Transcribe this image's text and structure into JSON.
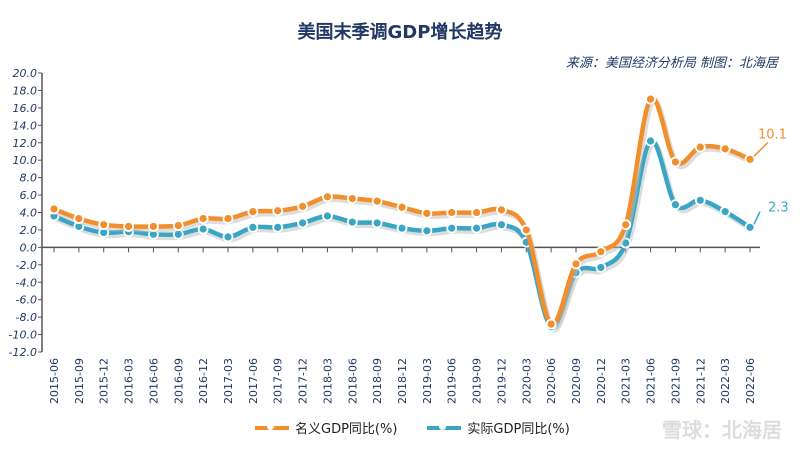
{
  "chart_data": {
    "type": "line",
    "title": "美国末季调GDP增长趋势",
    "source": "来源：美国经济分析局 制图：北海居",
    "ylim": [
      -12,
      20
    ],
    "yticks": [
      "20.0",
      "18.0",
      "16.0",
      "14.0",
      "12.0",
      "10.0",
      "8.0",
      "6.0",
      "4.0",
      "2.0",
      "0.0",
      "-2.0",
      "-4.0",
      "-6.0",
      "-8.0",
      "-10.0",
      "-12.0"
    ],
    "categories": [
      "2015-06",
      "2015-09",
      "2015-12",
      "2016-03",
      "2016-06",
      "2016-09",
      "2016-12",
      "2017-03",
      "2017-06",
      "2017-09",
      "2017-12",
      "2018-03",
      "2018-06",
      "2018-09",
      "2018-12",
      "2019-03",
      "2019-06",
      "2019-09",
      "2019-12",
      "2020-03",
      "2020-06",
      "2020-09",
      "2020-12",
      "2021-03",
      "2021-06",
      "2021-09",
      "2021-12",
      "2022-03",
      "2022-06"
    ],
    "series": [
      {
        "name": "名义GDP同比(%)",
        "color": "#f28e2b",
        "values": [
          4.4,
          3.3,
          2.6,
          2.4,
          2.4,
          2.5,
          3.3,
          3.3,
          4.1,
          4.2,
          4.7,
          5.8,
          5.6,
          5.3,
          4.6,
          3.9,
          4.0,
          4.0,
          4.3,
          2.0,
          -8.8,
          -1.9,
          -0.5,
          2.6,
          17.0,
          9.8,
          11.5,
          11.3,
          10.1
        ],
        "end_label": "10.1"
      },
      {
        "name": "实际GDP同比(%)",
        "color": "#3aa6c4",
        "values": [
          3.6,
          2.4,
          1.7,
          1.8,
          1.5,
          1.5,
          2.1,
          1.2,
          2.3,
          2.3,
          2.8,
          3.6,
          2.9,
          2.8,
          2.2,
          1.9,
          2.2,
          2.2,
          2.6,
          0.6,
          -9.1,
          -2.9,
          -2.3,
          0.5,
          12.2,
          4.9,
          5.4,
          4.1,
          2.3
        ],
        "end_label": "2.3"
      }
    ],
    "legend": "bottom",
    "grid": false
  },
  "watermark": "雪球：北海居"
}
